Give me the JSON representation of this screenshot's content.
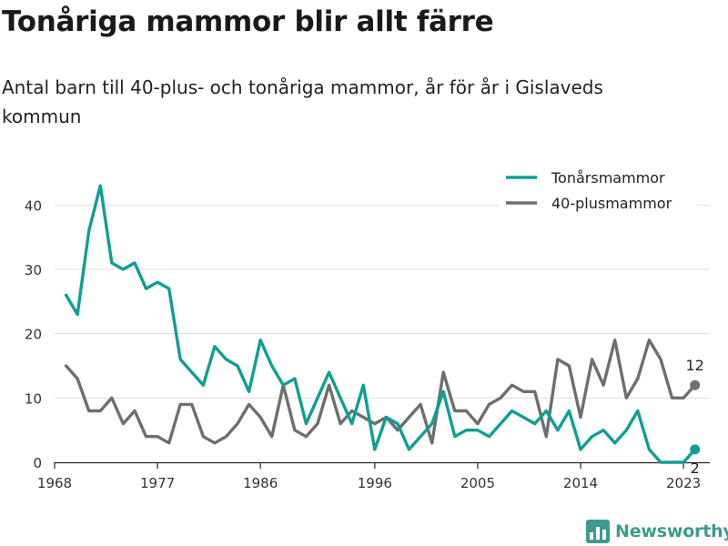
{
  "title": "Tonåriga mammor blir allt färre",
  "subtitle": "Antal barn till 40-plus- och tonåriga mammor, år för år i Gislaveds kommun",
  "brand": "Newsworthy",
  "colors": {
    "teen": "#0f9e94",
    "forty": "#6e6e6e",
    "grid": "#dddddd"
  },
  "chart_data": {
    "type": "line",
    "xlabel": "",
    "ylabel": "",
    "x": [
      1969,
      1970,
      1971,
      1972,
      1973,
      1974,
      1975,
      1976,
      1977,
      1978,
      1979,
      1980,
      1981,
      1982,
      1983,
      1984,
      1985,
      1986,
      1987,
      1988,
      1989,
      1990,
      1991,
      1992,
      1993,
      1994,
      1995,
      1996,
      1997,
      1998,
      1999,
      2000,
      2001,
      2002,
      2003,
      2004,
      2005,
      2006,
      2007,
      2008,
      2009,
      2010,
      2011,
      2012,
      2013,
      2014,
      2015,
      2016,
      2017,
      2018,
      2019,
      2020,
      2021,
      2022,
      2023,
      2024
    ],
    "xticks": [
      1968,
      1977,
      1986,
      1996,
      2005,
      2014,
      2023
    ],
    "yticks": [
      0,
      10,
      20,
      30,
      40
    ],
    "xlim": [
      1968,
      2025.3
    ],
    "ylim": [
      0,
      45
    ],
    "grid": "horizontal",
    "legend_placement": "top-right",
    "series": [
      {
        "name": "Tonårsmammor",
        "color": "#0f9e94",
        "values": [
          26,
          23,
          36,
          43,
          31,
          30,
          31,
          27,
          28,
          27,
          16,
          14,
          12,
          18,
          16,
          15,
          11,
          19,
          15,
          12,
          13,
          6,
          10,
          14,
          10,
          6,
          12,
          2,
          7,
          6,
          2,
          4,
          6,
          11,
          4,
          5,
          5,
          4,
          6,
          8,
          7,
          6,
          8,
          5,
          8,
          2,
          4,
          5,
          3,
          5,
          8,
          2,
          0,
          0,
          0,
          2
        ],
        "end_label": "2"
      },
      {
        "name": "40-plusmammor",
        "color": "#6e6e6e",
        "values": [
          15,
          13,
          8,
          8,
          10,
          6,
          8,
          4,
          4,
          3,
          9,
          9,
          4,
          3,
          4,
          6,
          9,
          7,
          4,
          12,
          5,
          4,
          6,
          12,
          6,
          8,
          7,
          6,
          7,
          5,
          7,
          9,
          3,
          14,
          8,
          8,
          6,
          9,
          10,
          12,
          11,
          11,
          4,
          16,
          15,
          7,
          16,
          12,
          19,
          10,
          13,
          19,
          16,
          10,
          10,
          12
        ],
        "end_label": "12"
      }
    ]
  }
}
